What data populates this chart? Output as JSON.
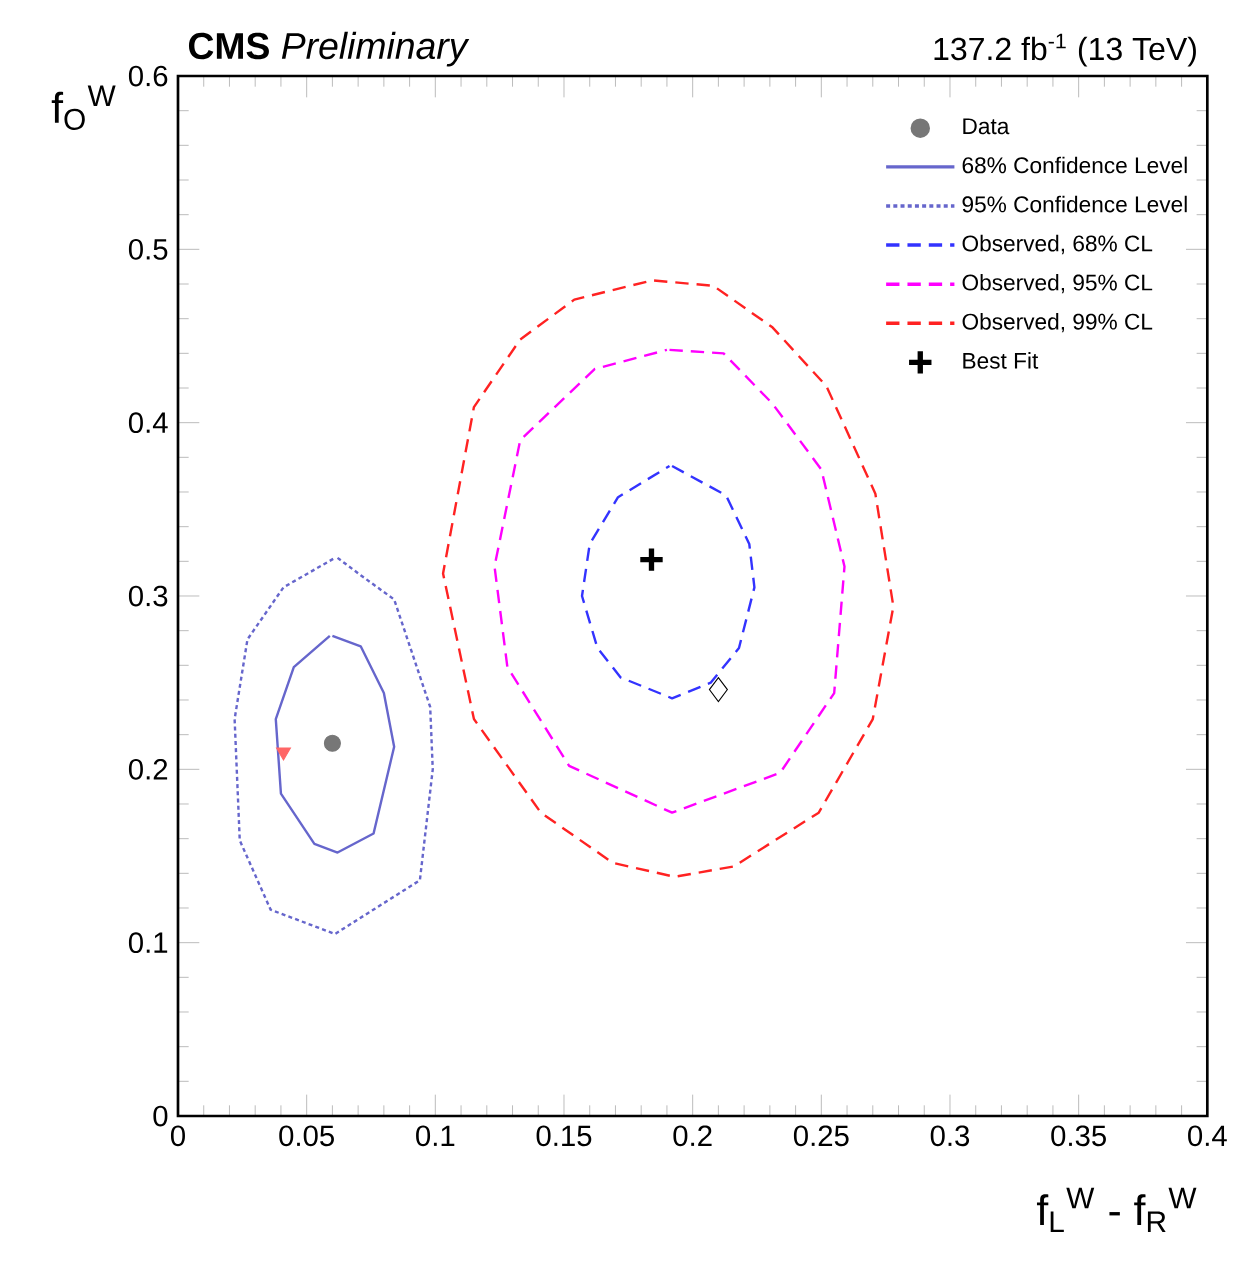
{
  "chart_data": {
    "type": "line",
    "title": "**CMS** *Preliminary*",
    "subtitle": "137.2 fb$^{-1}$ (13 TeV)",
    "xlabel": "f$_{L}$$^{W}$ - f$_{R}$$^{W}$",
    "ylabel": "f$_{O}$$^{W}$",
    "xlim": [
      0,
      0.4
    ],
    "ylim": [
      0,
      0.6
    ],
    "xticks": [
      0,
      0.05,
      0.1,
      0.15,
      0.2,
      0.25,
      0.3,
      0.35,
      0.4
    ],
    "yticks": [
      0,
      0.1,
      0.2,
      0.3,
      0.4,
      0.5,
      0.6
    ],
    "legend": "top right",
    "series": [
      {
        "name": "Data",
        "type": "scatter",
        "marker": "circle",
        "color": "#777777",
        "x": [
          0.06
        ],
        "values": [
          0.215
        ]
      },
      {
        "type": "scatter",
        "marker": "triangle",
        "color": "#ff6666",
        "x": [
          0.041
        ],
        "values": [
          0.21
        ]
      },
      {
        "name": "68% Confidence Level",
        "line_style": "solid",
        "color": "#6666cc",
        "x": [
          0.06,
          0.071,
          0.08,
          0.084,
          0.076,
          0.062,
          0.053,
          0.04,
          0.038,
          0.045,
          0.059
        ],
        "values": [
          0.277,
          0.271,
          0.244,
          0.213,
          0.163,
          0.152,
          0.157,
          0.186,
          0.229,
          0.259,
          0.277
        ]
      },
      {
        "name": "95% Confidence Level",
        "line_style": "dotted",
        "color": "#6666cc",
        "x": [
          0.062,
          0.071,
          0.084,
          0.098,
          0.099,
          0.094,
          0.061,
          0.036,
          0.024,
          0.022,
          0.027,
          0.041,
          0.061
        ],
        "values": [
          0.322,
          0.312,
          0.298,
          0.236,
          0.2,
          0.136,
          0.105,
          0.119,
          0.159,
          0.229,
          0.275,
          0.305,
          0.322
        ]
      },
      {
        "name": "Observed, 68% CL",
        "line_style": "dashed",
        "color": "#3333ff",
        "x": [
          0.192,
          0.213,
          0.222,
          0.224,
          0.218,
          0.207,
          0.192,
          0.172,
          0.163,
          0.157,
          0.16,
          0.171,
          0.191
        ],
        "values": [
          0.375,
          0.358,
          0.33,
          0.305,
          0.27,
          0.25,
          0.241,
          0.253,
          0.27,
          0.3,
          0.33,
          0.357,
          0.375
        ]
      },
      {
        "name": "Observed, 95% CL",
        "line_style": "dashed",
        "color": "#ff00ff",
        "x": [
          0.191,
          0.212,
          0.231,
          0.25,
          0.259,
          0.255,
          0.234,
          0.192,
          0.152,
          0.128,
          0.123,
          0.133,
          0.162,
          0.19
        ],
        "values": [
          0.442,
          0.44,
          0.411,
          0.373,
          0.317,
          0.244,
          0.198,
          0.175,
          0.202,
          0.259,
          0.317,
          0.39,
          0.431,
          0.442
        ]
      },
      {
        "name": "Observed, 99% CL",
        "line_style": "dashed",
        "color": "#ff2222",
        "x": [
          0.185,
          0.208,
          0.231,
          0.252,
          0.271,
          0.278,
          0.27,
          0.249,
          0.216,
          0.193,
          0.169,
          0.141,
          0.115,
          0.103,
          0.115,
          0.133,
          0.154,
          0.184
        ],
        "values": [
          0.482,
          0.479,
          0.455,
          0.421,
          0.359,
          0.294,
          0.229,
          0.175,
          0.144,
          0.138,
          0.146,
          0.175,
          0.229,
          0.313,
          0.409,
          0.448,
          0.471,
          0.482
        ]
      },
      {
        "name": "Best Fit",
        "type": "scatter",
        "marker": "cross",
        "color": "#000000",
        "x": [
          0.184
        ],
        "values": [
          0.321
        ]
      },
      {
        "type": "scatter",
        "marker": "diamond",
        "color": "#000000",
        "x": [
          0.21
        ],
        "values": [
          0.246
        ]
      }
    ]
  }
}
